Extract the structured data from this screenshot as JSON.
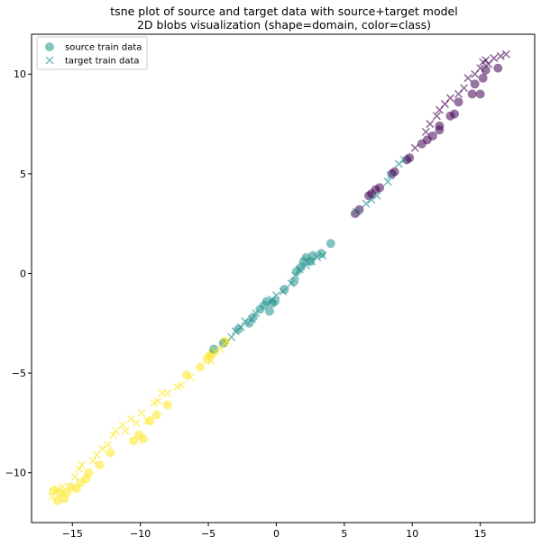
{
  "chart_data": {
    "type": "scatter",
    "title": "tsne plot of source and target data with source+target model",
    "subtitle": "2D blobs visualization (shape=domain, color=class)",
    "xlabel": "",
    "ylabel": "",
    "xlim": [
      -18,
      19
    ],
    "ylim": [
      -12.5,
      12
    ],
    "xticks": [
      -15,
      -10,
      -5,
      0,
      5,
      10,
      15
    ],
    "yticks": [
      -10,
      -5,
      0,
      5,
      10
    ],
    "grid": false,
    "legend_position": "top-left",
    "class_colors": [
      "#440154",
      "#21918c",
      "#fde725"
    ],
    "series": [
      {
        "name": "source train data",
        "marker": "circle",
        "legend_color": "#21918c",
        "points": [
          [
            -16.4,
            -10.9,
            2
          ],
          [
            -16.1,
            -11.4,
            2
          ],
          [
            -15.9,
            -11.0,
            2
          ],
          [
            -15.6,
            -11.3,
            2
          ],
          [
            -15.4,
            -11.0,
            2
          ],
          [
            -15.1,
            -10.7,
            2
          ],
          [
            -14.7,
            -10.8,
            2
          ],
          [
            -14.4,
            -10.5,
            2
          ],
          [
            -14.0,
            -10.3,
            2
          ],
          [
            -13.8,
            -10.0,
            2
          ],
          [
            -13.0,
            -9.6,
            2
          ],
          [
            -12.2,
            -9.0,
            2
          ],
          [
            -10.5,
            -8.4,
            2
          ],
          [
            -10.1,
            -8.1,
            2
          ],
          [
            -9.8,
            -8.3,
            2
          ],
          [
            -9.3,
            -7.4,
            2
          ],
          [
            -8.8,
            -7.1,
            2
          ],
          [
            -8.0,
            -6.6,
            2
          ],
          [
            -6.6,
            -5.1,
            2
          ],
          [
            -5.6,
            -4.7,
            2
          ],
          [
            -5.1,
            -4.3,
            2
          ],
          [
            -4.9,
            -4.1,
            2
          ],
          [
            -4.7,
            -4.0,
            2
          ],
          [
            -3.8,
            -3.4,
            2
          ],
          [
            -4.6,
            -3.8,
            1
          ],
          [
            -3.9,
            -3.5,
            1
          ],
          [
            -2.8,
            -2.8,
            1
          ],
          [
            -2.0,
            -2.5,
            1
          ],
          [
            -1.7,
            -2.2,
            1
          ],
          [
            -1.2,
            -1.8,
            1
          ],
          [
            -0.9,
            -1.6,
            1
          ],
          [
            -0.7,
            -1.4,
            1
          ],
          [
            -0.3,
            -1.5,
            1
          ],
          [
            -0.1,
            -1.4,
            1
          ],
          [
            -0.5,
            -1.9,
            1
          ],
          [
            0.6,
            -0.8,
            1
          ],
          [
            1.3,
            -0.4,
            1
          ],
          [
            1.5,
            0.1,
            1
          ],
          [
            1.8,
            0.3,
            1
          ],
          [
            2.0,
            0.6,
            1
          ],
          [
            2.2,
            0.8,
            1
          ],
          [
            2.5,
            0.6,
            1
          ],
          [
            2.7,
            0.9,
            1
          ],
          [
            3.3,
            1.0,
            1
          ],
          [
            4.0,
            1.5,
            1
          ],
          [
            5.8,
            3.0,
            0
          ],
          [
            6.1,
            3.2,
            0
          ],
          [
            6.8,
            3.9,
            0
          ],
          [
            7.0,
            4.0,
            0
          ],
          [
            7.3,
            4.2,
            0
          ],
          [
            7.6,
            4.3,
            0
          ],
          [
            8.5,
            5.0,
            0
          ],
          [
            8.7,
            5.1,
            0
          ],
          [
            9.6,
            5.7,
            0
          ],
          [
            9.8,
            5.8,
            0
          ],
          [
            10.7,
            6.5,
            0
          ],
          [
            11.1,
            6.7,
            0
          ],
          [
            11.5,
            6.9,
            0
          ],
          [
            12.0,
            7.2,
            0
          ],
          [
            12.0,
            7.4,
            0
          ],
          [
            12.8,
            7.9,
            0
          ],
          [
            13.1,
            8.0,
            0
          ],
          [
            13.4,
            8.6,
            0
          ],
          [
            14.4,
            9.0,
            0
          ],
          [
            14.6,
            9.5,
            0
          ],
          [
            15.0,
            9.0,
            0
          ],
          [
            15.2,
            9.8,
            0
          ],
          [
            15.4,
            10.2,
            0
          ],
          [
            16.3,
            10.3,
            0
          ]
        ]
      },
      {
        "name": "target train data",
        "marker": "x",
        "legend_color": "#21918c",
        "points": [
          [
            -16.5,
            -11.2,
            2
          ],
          [
            -16.1,
            -10.8,
            2
          ],
          [
            -15.7,
            -10.7,
            2
          ],
          [
            -14.8,
            -10.2,
            2
          ],
          [
            -14.5,
            -9.8,
            2
          ],
          [
            -14.3,
            -9.6,
            2
          ],
          [
            -13.5,
            -9.4,
            2
          ],
          [
            -13.2,
            -9.1,
            2
          ],
          [
            -12.8,
            -8.8,
            2
          ],
          [
            -12.4,
            -8.6,
            2
          ],
          [
            -12.0,
            -8.1,
            2
          ],
          [
            -11.8,
            -7.9,
            2
          ],
          [
            -11.3,
            -7.6,
            2
          ],
          [
            -11.1,
            -7.9,
            2
          ],
          [
            -10.7,
            -7.3,
            2
          ],
          [
            -10.3,
            -7.5,
            2
          ],
          [
            -9.9,
            -7.0,
            2
          ],
          [
            -9.5,
            -7.4,
            2
          ],
          [
            -9.0,
            -6.5,
            2
          ],
          [
            -8.7,
            -6.4,
            2
          ],
          [
            -8.4,
            -6.0,
            2
          ],
          [
            -8.0,
            -6.0,
            2
          ],
          [
            -7.3,
            -5.7,
            2
          ],
          [
            -7.0,
            -5.6,
            2
          ],
          [
            -6.3,
            -5.2,
            2
          ],
          [
            -4.8,
            -4.4,
            2
          ],
          [
            -4.5,
            -3.9,
            2
          ],
          [
            -4.1,
            -3.8,
            2
          ],
          [
            -3.8,
            -3.5,
            2
          ],
          [
            -3.6,
            -3.4,
            2
          ],
          [
            -3.3,
            -3.2,
            1
          ],
          [
            -3.0,
            -2.9,
            1
          ],
          [
            -2.6,
            -2.7,
            1
          ],
          [
            -2.3,
            -2.4,
            1
          ],
          [
            -1.8,
            -2.3,
            1
          ],
          [
            -1.5,
            -2.0,
            1
          ],
          [
            -0.3,
            -1.3,
            1
          ],
          [
            0.0,
            -1.1,
            1
          ],
          [
            0.5,
            -0.9,
            1
          ],
          [
            1.1,
            -0.5,
            1
          ],
          [
            1.4,
            -0.1,
            1
          ],
          [
            1.7,
            0.2,
            1
          ],
          [
            2.2,
            0.4,
            1
          ],
          [
            2.6,
            0.6,
            1
          ],
          [
            3.0,
            0.8,
            1
          ],
          [
            3.4,
            0.9,
            1
          ],
          [
            5.9,
            3.1,
            1
          ],
          [
            6.6,
            3.5,
            1
          ],
          [
            7.0,
            3.7,
            1
          ],
          [
            7.4,
            3.9,
            1
          ],
          [
            8.2,
            4.6,
            1
          ],
          [
            8.4,
            4.9,
            1
          ],
          [
            9.0,
            5.5,
            1
          ],
          [
            9.4,
            5.7,
            1
          ],
          [
            10.2,
            6.3,
            0
          ],
          [
            11.0,
            7.1,
            0
          ],
          [
            11.3,
            7.5,
            0
          ],
          [
            11.8,
            7.9,
            0
          ],
          [
            12.0,
            8.2,
            0
          ],
          [
            12.4,
            8.5,
            0
          ],
          [
            12.8,
            8.8,
            0
          ],
          [
            13.4,
            9.0,
            0
          ],
          [
            13.8,
            9.3,
            0
          ],
          [
            14.1,
            9.8,
            0
          ],
          [
            14.6,
            10.0,
            0
          ],
          [
            15.0,
            10.3,
            0
          ],
          [
            15.2,
            10.6,
            0
          ],
          [
            15.4,
            10.7,
            0
          ],
          [
            15.6,
            10.5,
            0
          ],
          [
            16.0,
            10.8,
            0
          ],
          [
            16.5,
            10.9,
            0
          ],
          [
            16.9,
            11.0,
            0
          ]
        ]
      }
    ]
  }
}
